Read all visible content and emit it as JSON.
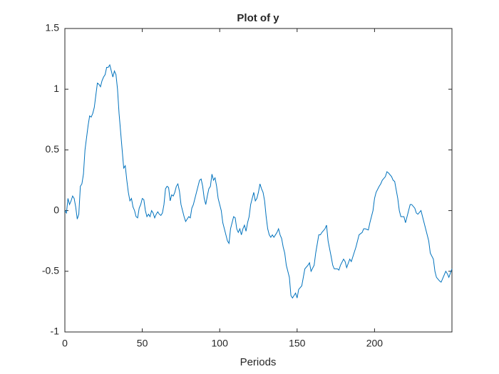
{
  "chart_data": {
    "type": "line",
    "title": "Plot of y",
    "x_label": "Periods",
    "color": "#0072bd",
    "xlim": [
      0,
      250
    ],
    "ylim": [
      -1,
      1.5
    ],
    "xticks": [
      0,
      50,
      100,
      150,
      200
    ],
    "yticks": [
      -1,
      -0.5,
      0,
      0.5,
      1,
      1.5
    ],
    "x": [
      0,
      1,
      2,
      3,
      4,
      5,
      6,
      7,
      8,
      9,
      10,
      11,
      12,
      13,
      14,
      15,
      16,
      17,
      18,
      19,
      20,
      21,
      22,
      23,
      24,
      25,
      26,
      27,
      28,
      29,
      30,
      31,
      32,
      33,
      34,
      35,
      36,
      37,
      38,
      39,
      40,
      41,
      42,
      43,
      44,
      45,
      46,
      47,
      48,
      49,
      50,
      51,
      52,
      53,
      54,
      55,
      56,
      57,
      58,
      59,
      60,
      61,
      62,
      63,
      64,
      65,
      66,
      67,
      68,
      69,
      70,
      71,
      72,
      73,
      74,
      75,
      76,
      77,
      78,
      79,
      80,
      81,
      82,
      83,
      84,
      85,
      86,
      87,
      88,
      89,
      90,
      91,
      92,
      93,
      94,
      95,
      96,
      97,
      98,
      99,
      100,
      101,
      102,
      103,
      104,
      105,
      106,
      107,
      108,
      109,
      110,
      111,
      112,
      113,
      114,
      115,
      116,
      117,
      118,
      119,
      120,
      121,
      122,
      123,
      124,
      125,
      126,
      127,
      128,
      129,
      130,
      131,
      132,
      133,
      134,
      135,
      136,
      137,
      138,
      139,
      140,
      141,
      142,
      143,
      144,
      145,
      146,
      147,
      148,
      149,
      150,
      151,
      153,
      154,
      155,
      157,
      158,
      159,
      161,
      162,
      164,
      165,
      166,
      168,
      169,
      170,
      172,
      173,
      174,
      176,
      177,
      178,
      180,
      181,
      182,
      184,
      185,
      186,
      188,
      189,
      190,
      192,
      193,
      194,
      196,
      197,
      199,
      200,
      201,
      203,
      204,
      205,
      207,
      208,
      209,
      211,
      212,
      213,
      215,
      216,
      217,
      219,
      220,
      221,
      223,
      224,
      226,
      227,
      228,
      230,
      231,
      232,
      234,
      235,
      236,
      238,
      239,
      240,
      242,
      243,
      244,
      246,
      247,
      248,
      250
    ],
    "values": [
      0,
      -0.02,
      0.1,
      0.05,
      0.08,
      0.12,
      0.1,
      0.03,
      -0.07,
      -0.03,
      0.2,
      0.22,
      0.3,
      0.5,
      0.6,
      0.7,
      0.78,
      0.77,
      0.8,
      0.85,
      0.95,
      1.05,
      1.04,
      1.02,
      1.07,
      1.1,
      1.12,
      1.18,
      1.18,
      1.2,
      1.15,
      1.1,
      1.15,
      1.12,
      1.0,
      0.8,
      0.65,
      0.5,
      0.35,
      0.37,
      0.25,
      0.15,
      0.08,
      0.1,
      0.03,
      0.0,
      -0.05,
      -0.06,
      0.02,
      0.05,
      0.1,
      0.09,
      0.0,
      -0.05,
      -0.03,
      -0.05,
      0.0,
      -0.02,
      -0.06,
      -0.03,
      -0.01,
      -0.03,
      -0.04,
      -0.02,
      0.05,
      0.18,
      0.2,
      0.19,
      0.08,
      0.13,
      0.12,
      0.15,
      0.2,
      0.22,
      0.16,
      0.05,
      0.0,
      -0.05,
      -0.09,
      -0.07,
      -0.05,
      -0.06,
      0.02,
      0.05,
      0.1,
      0.15,
      0.2,
      0.25,
      0.26,
      0.2,
      0.1,
      0.05,
      0.12,
      0.18,
      0.2,
      0.3,
      0.25,
      0.27,
      0.2,
      0.1,
      0.05,
      0.0,
      -0.1,
      -0.15,
      -0.2,
      -0.25,
      -0.27,
      -0.15,
      -0.1,
      -0.05,
      -0.06,
      -0.15,
      -0.18,
      -0.15,
      -0.2,
      -0.15,
      -0.12,
      -0.17,
      -0.1,
      -0.05,
      0.05,
      0.1,
      0.15,
      0.08,
      0.1,
      0.15,
      0.22,
      0.18,
      0.15,
      0.08,
      -0.05,
      -0.15,
      -0.2,
      -0.22,
      -0.2,
      -0.22,
      -0.2,
      -0.18,
      -0.15,
      -0.2,
      -0.23,
      -0.3,
      -0.35,
      -0.45,
      -0.5,
      -0.55,
      -0.7,
      -0.72,
      -0.7,
      -0.68,
      -0.72,
      -0.65,
      -0.62,
      -0.55,
      -0.48,
      -0.45,
      -0.43,
      -0.5,
      -0.45,
      -0.35,
      -0.2,
      -0.2,
      -0.18,
      -0.15,
      -0.12,
      -0.25,
      -0.38,
      -0.45,
      -0.48,
      -0.48,
      -0.49,
      -0.45,
      -0.4,
      -0.42,
      -0.47,
      -0.4,
      -0.42,
      -0.38,
      -0.3,
      -0.25,
      -0.2,
      -0.18,
      -0.15,
      -0.15,
      -0.16,
      -0.1,
      0.0,
      0.1,
      0.15,
      0.2,
      0.22,
      0.25,
      0.28,
      0.32,
      0.31,
      0.28,
      0.25,
      0.24,
      0.1,
      0.0,
      -0.05,
      -0.05,
      -0.1,
      -0.05,
      0.05,
      0.05,
      0.02,
      -0.02,
      -0.03,
      0.0,
      -0.05,
      -0.1,
      -0.2,
      -0.25,
      -0.35,
      -0.4,
      -0.5,
      -0.55,
      -0.58,
      -0.59,
      -0.56,
      -0.5,
      -0.52,
      -0.55,
      -0.48
    ]
  }
}
